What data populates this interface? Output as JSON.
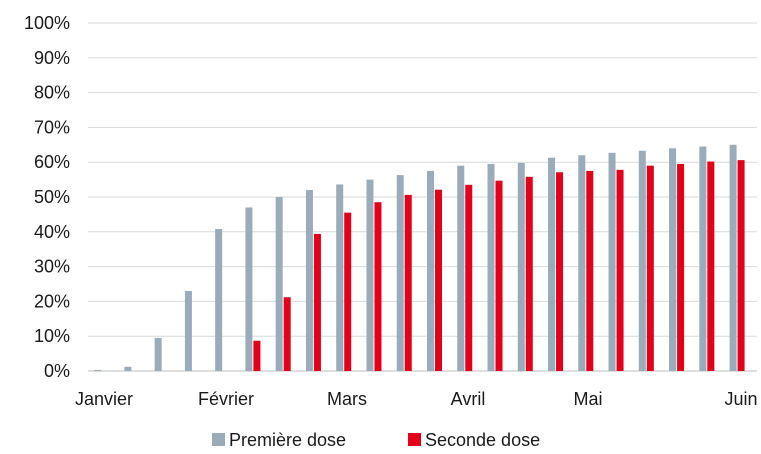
{
  "chart_data": {
    "type": "bar",
    "title": "",
    "xlabel": "",
    "ylabel": "",
    "ylim": [
      0,
      100
    ],
    "y_ticks": [
      "0%",
      "10%",
      "20%",
      "30%",
      "40%",
      "50%",
      "60%",
      "70%",
      "80%",
      "90%",
      "100%"
    ],
    "x_month_labels": [
      "Janvier",
      "Février",
      "Mars",
      "Avril",
      "Mai",
      "Juin"
    ],
    "grid": true,
    "legend_position": "bottom",
    "series": [
      {
        "name": "Première dose",
        "color": "#9aabba",
        "values": [
          0.3,
          1.2,
          9.5,
          23,
          40.8,
          47,
          50,
          52,
          53.6,
          55,
          56.3,
          57.5,
          59,
          59.5,
          59.8,
          61.3,
          62,
          62.7,
          63.3,
          64,
          64.5,
          65
        ]
      },
      {
        "name": "Seconde dose",
        "color": "#e3001b",
        "values": [
          0,
          0,
          0,
          0,
          0,
          8.7,
          21.2,
          39.4,
          45.5,
          48.5,
          50.6,
          52.1,
          53.5,
          54.7,
          55.8,
          57.1,
          57.5,
          57.8,
          59,
          59.5,
          60.2,
          60.6
        ]
      }
    ]
  }
}
